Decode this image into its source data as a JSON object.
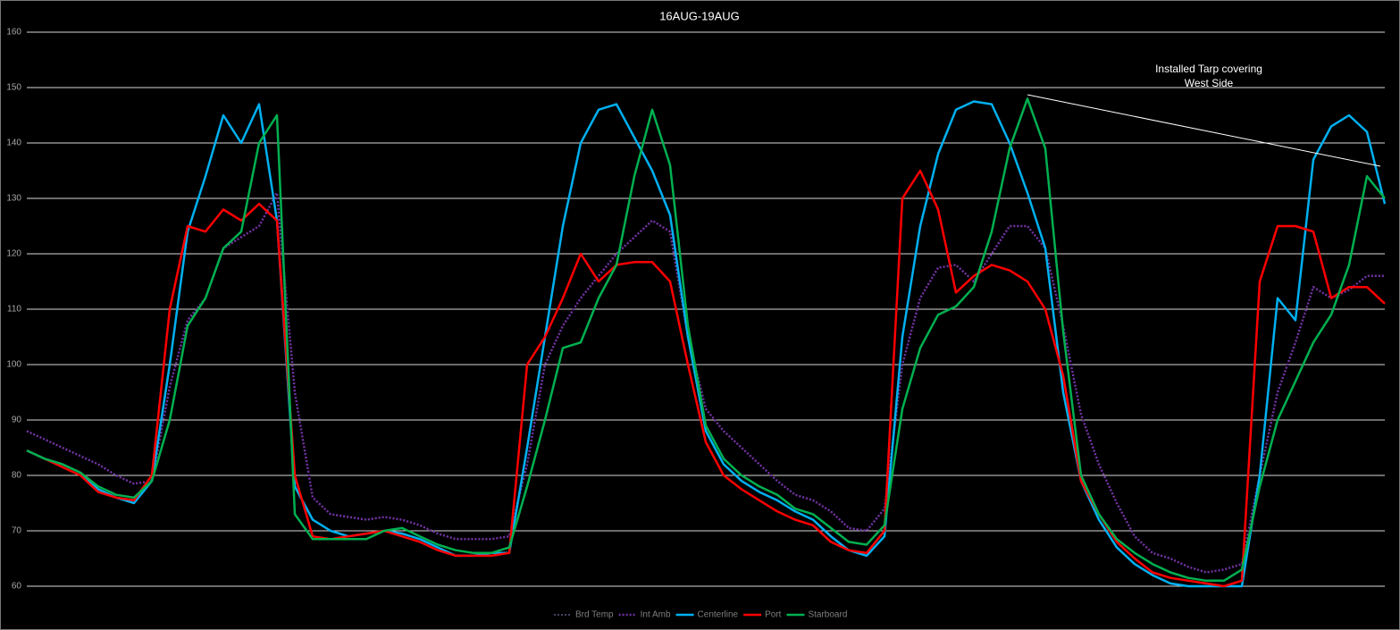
{
  "chart_data": {
    "type": "line",
    "title": "16AUG-19AUG",
    "annotation": "Installed Tarp covering West Side",
    "ylim": [
      60,
      160
    ],
    "yticks": [
      60,
      70,
      80,
      90,
      100,
      110,
      120,
      130,
      140,
      150,
      160
    ],
    "grid": true,
    "legend": "bottom",
    "series": [
      {
        "name": "Brd Temp",
        "color": "#8f7fbf",
        "style": "dotted",
        "width": 1,
        "values": [
          88,
          86.5,
          85,
          83.5,
          82,
          80,
          78.5,
          79,
          96,
          108,
          112,
          121,
          123,
          125,
          131,
          95,
          76,
          73,
          72.5,
          72,
          72.5,
          72,
          71,
          69.5,
          68.5,
          68.5,
          68.5,
          69,
          82,
          100,
          107,
          112,
          116,
          120,
          123,
          126,
          124,
          105,
          92,
          88,
          85,
          82,
          79,
          76.5,
          75.5,
          73.5,
          70.5,
          70,
          74,
          100,
          112,
          117.5,
          118,
          115,
          120,
          125,
          125,
          121,
          107,
          91,
          82,
          75,
          69,
          66,
          65,
          63.5,
          62.5,
          63,
          64,
          80,
          95,
          104,
          114,
          112,
          113.5,
          116,
          116
        ]
      },
      {
        "name": "Int Amb",
        "color": "#7030a0",
        "style": "dotted",
        "width": 2.5,
        "values": [
          88,
          86.5,
          85,
          83.5,
          82,
          80,
          78.5,
          79,
          96,
          108,
          112,
          121,
          123,
          125,
          131,
          95,
          76,
          73,
          72.5,
          72,
          72.5,
          72,
          71,
          69.5,
          68.5,
          68.5,
          68.5,
          69,
          82,
          100,
          107,
          112,
          116,
          120,
          123,
          126,
          124,
          105,
          92,
          88,
          85,
          82,
          79,
          76.5,
          75.5,
          73.5,
          70.5,
          70,
          74,
          100,
          112,
          117.5,
          118,
          115,
          120,
          125,
          125,
          121,
          107,
          91,
          82,
          75,
          69,
          66,
          65,
          63.5,
          62.5,
          63,
          64,
          80,
          95,
          104,
          114,
          112,
          113.5,
          116,
          116
        ]
      },
      {
        "name": "Centerline",
        "color": "#00b0f0",
        "style": "solid",
        "width": 2.5,
        "values": [
          84.5,
          83,
          82,
          80.5,
          77.5,
          76,
          75,
          79,
          100,
          124,
          134,
          145,
          140,
          147,
          126,
          78,
          72,
          70,
          69,
          69.5,
          70,
          69.5,
          68.5,
          67,
          65.5,
          65.5,
          66,
          66,
          85,
          105,
          125,
          140,
          146,
          147,
          141,
          135,
          127,
          105,
          88,
          82,
          79,
          77,
          75.5,
          73.5,
          72,
          69,
          66.5,
          65.5,
          69,
          105,
          125,
          138,
          146,
          147.5,
          147,
          140,
          131,
          121,
          95,
          79,
          72,
          67,
          64,
          62,
          60.5,
          60,
          60,
          60,
          60,
          80,
          112,
          108,
          137,
          143,
          145,
          142,
          129
        ]
      },
      {
        "name": "Port",
        "color": "#ff0000",
        "style": "solid",
        "width": 2.5,
        "values": [
          84.5,
          83,
          81.5,
          80,
          77,
          76,
          75.5,
          80,
          110,
          125,
          124,
          128,
          126,
          129,
          126,
          80,
          69,
          68.5,
          69,
          69.5,
          70,
          69,
          68,
          66.5,
          65.5,
          65.5,
          65.5,
          66,
          100,
          105,
          112,
          120,
          115,
          118,
          118.5,
          118.5,
          115,
          100,
          86,
          80,
          77.5,
          75.5,
          73.5,
          72,
          71,
          68,
          66.5,
          66,
          70,
          130,
          135,
          128,
          113,
          116,
          118,
          117,
          115,
          110,
          98,
          79,
          73,
          68,
          65,
          62.5,
          61.5,
          61,
          60.5,
          60,
          61,
          115,
          125,
          125,
          124,
          112,
          114,
          114,
          111
        ]
      },
      {
        "name": "Starboard",
        "color": "#00b050",
        "style": "solid",
        "width": 2.5,
        "values": [
          84.5,
          83,
          82,
          80.5,
          78,
          76.5,
          76,
          79,
          90,
          107,
          112,
          121,
          124,
          140,
          145,
          73,
          68.5,
          68.5,
          68.5,
          68.5,
          70,
          70.5,
          69,
          67.5,
          66.5,
          66,
          66,
          67,
          78,
          90,
          103,
          104,
          112,
          118,
          134,
          146,
          136,
          107,
          89,
          83,
          80,
          78,
          76.5,
          74,
          73,
          70.5,
          68,
          67.5,
          71,
          92,
          103,
          109,
          110.5,
          114,
          124,
          139,
          148,
          139,
          106,
          80,
          73,
          68.5,
          66,
          64,
          62.5,
          61.5,
          61,
          61,
          63,
          78,
          90,
          97,
          104,
          109,
          118,
          134,
          130
        ]
      }
    ]
  }
}
